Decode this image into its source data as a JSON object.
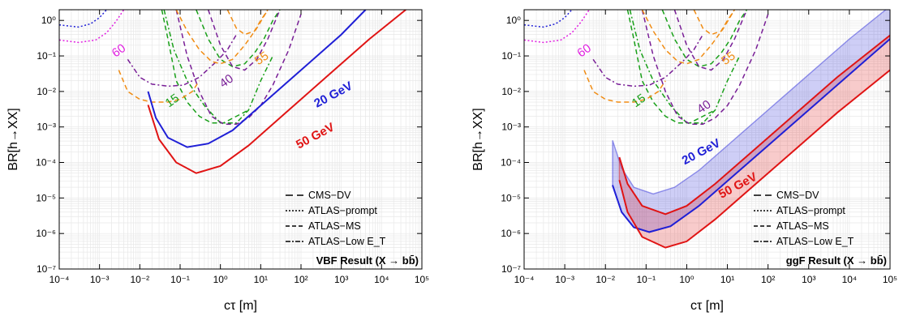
{
  "chart_data": [
    {
      "type": "line",
      "xlabel": "cτ [m]",
      "ylabel": "BR[h→XX]",
      "xscale": "log",
      "yscale": "log",
      "xlim": [
        0.0001,
        100000
      ],
      "ylim": [
        1e-07,
        2
      ],
      "x_ticks": [
        "10⁻⁴",
        "10⁻³",
        "10⁻²",
        "10⁻¹",
        "10⁰",
        "10¹",
        "10²",
        "10³",
        "10⁴",
        "10⁵"
      ],
      "y_ticks": [
        "10⁻⁷",
        "10⁻⁶",
        "10⁻⁵",
        "10⁻⁴",
        "10⁻³",
        "10⁻²",
        "10⁻¹",
        "10⁰"
      ],
      "annotation": "VBF Result (X → bb̄)",
      "legend": {
        "placement": "bottom-right",
        "entries": [
          "CMS−DV",
          "ATLAS−prompt",
          "ATLAS−MS",
          "ATLAS−Low E_T"
        ]
      },
      "mass_labels": [
        {
          "text": "20 GeV",
          "color": "#1f1fd6",
          "x": 700,
          "y": 0.0065
        },
        {
          "text": "50 GeV",
          "color": "#e01414",
          "x": 250,
          "y": 0.00045
        }
      ],
      "contour_labels": [
        {
          "text": "60",
          "color": "#e020e0",
          "x": 0.0034,
          "y": 0.115
        },
        {
          "text": "55",
          "color": "#f08c14",
          "x": 12,
          "y": 0.07
        },
        {
          "text": "40",
          "color": "#781e96",
          "x": 1.6,
          "y": 0.016
        },
        {
          "text": "15",
          "color": "#19a019",
          "x": 0.072,
          "y": 0.0045
        }
      ],
      "series": [
        {
          "name": "20 GeV",
          "color": "#1f1fd6",
          "style": "solid",
          "x": [
            0.016,
            0.025,
            0.05,
            0.15,
            0.5,
            2,
            10,
            100,
            1000,
            4000
          ],
          "y": [
            0.01,
            0.0018,
            0.0005,
            0.00027,
            0.00034,
            0.0008,
            0.004,
            0.04,
            0.4,
            2
          ]
        },
        {
          "name": "50 GeV",
          "color": "#e01414",
          "style": "solid",
          "x": [
            0.016,
            0.03,
            0.08,
            0.25,
            1,
            5,
            50,
            500,
            5000,
            40000
          ],
          "y": [
            0.0042,
            0.00045,
            0.0001,
            5e-05,
            8e-05,
            0.0003,
            0.003,
            0.03,
            0.3,
            2
          ]
        }
      ],
      "contours": [
        {
          "label": "15",
          "color": "#19a019",
          "style": "dash",
          "x": [
            0.035,
            0.05,
            0.08,
            0.15,
            0.3,
            0.6,
            1.2,
            2.5,
            5
          ],
          "y": [
            2,
            0.3,
            0.02,
            0.005,
            0.002,
            0.0013,
            0.0013,
            0.002,
            0.003
          ]
        },
        {
          "label": "15",
          "color": "#19a019",
          "style": "dashdot",
          "x": [
            0.04,
            0.07,
            0.15,
            0.4,
            1,
            2.5,
            5,
            10,
            20
          ],
          "y": [
            2,
            0.15,
            0.02,
            0.004,
            0.0013,
            0.0013,
            0.003,
            0.02,
            0.1
          ]
        },
        {
          "label": "15",
          "color": "#19a019",
          "style": "dash",
          "x": [
            0.25,
            0.5,
            1,
            2,
            4,
            7,
            12,
            20,
            30
          ],
          "y": [
            2,
            0.3,
            0.08,
            0.05,
            0.06,
            0.12,
            0.3,
            1,
            2
          ]
        },
        {
          "label": "40",
          "color": "#781e96",
          "style": "dashdot",
          "x": [
            0.005,
            0.01,
            0.02,
            0.05,
            0.12,
            0.3,
            0.8,
            1.5,
            2.5
          ],
          "y": [
            0.08,
            0.025,
            0.016,
            0.014,
            0.015,
            0.025,
            0.07,
            0.15,
            0.4
          ]
        },
        {
          "label": "40",
          "color": "#781e96",
          "style": "dash",
          "x": [
            0.08,
            0.15,
            0.3,
            0.6,
            1.2,
            2.5,
            5,
            10,
            20,
            50,
            100
          ],
          "y": [
            2,
            0.1,
            0.01,
            0.002,
            0.0012,
            0.0012,
            0.0018,
            0.004,
            0.015,
            0.15,
            1.5
          ]
        },
        {
          "label": "40",
          "color": "#781e96",
          "style": "dash",
          "x": [
            0.5,
            1,
            2,
            4,
            8,
            15,
            30
          ],
          "y": [
            2,
            0.2,
            0.05,
            0.04,
            0.08,
            0.3,
            2
          ]
        },
        {
          "label": "55",
          "color": "#f08c14",
          "style": "dash",
          "x": [
            0.003,
            0.005,
            0.01,
            0.02,
            0.05,
            0.1,
            0.2,
            0.3
          ],
          "y": [
            0.04,
            0.01,
            0.006,
            0.005,
            0.005,
            0.006,
            0.01,
            0.02
          ]
        },
        {
          "label": "55",
          "color": "#f08c14",
          "style": "dash",
          "x": [
            0.08,
            0.15,
            0.3,
            0.6,
            1,
            2,
            4,
            8,
            15
          ],
          "y": [
            2,
            0.5,
            0.15,
            0.07,
            0.06,
            0.08,
            0.2,
            0.6,
            2
          ]
        },
        {
          "label": "55",
          "color": "#f08c14",
          "style": "dash",
          "x": [
            1.5,
            2.5,
            4,
            7,
            10,
            15
          ],
          "y": [
            2,
            0.6,
            0.4,
            0.5,
            1,
            2
          ]
        },
        {
          "label": "60",
          "color": "#e020e0",
          "style": "dot",
          "x": [
            0.0001,
            0.0003,
            0.0008,
            0.0015,
            0.0025,
            0.004
          ],
          "y": [
            0.28,
            0.24,
            0.28,
            0.45,
            0.9,
            2
          ]
        },
        {
          "label": "",
          "color": "#1f1fd6",
          "style": "dot",
          "x": [
            0.0001,
            0.0003,
            0.0006,
            0.001,
            0.0015
          ],
          "y": [
            0.75,
            0.65,
            0.8,
            1.2,
            2
          ]
        }
      ]
    },
    {
      "type": "line",
      "xlabel": "cτ [m]",
      "ylabel": "BR[h→XX]",
      "xscale": "log",
      "yscale": "log",
      "xlim": [
        0.0001,
        100000
      ],
      "ylim": [
        1e-07,
        2
      ],
      "x_ticks": [
        "10⁻⁴",
        "10⁻³",
        "10⁻²",
        "10⁻¹",
        "10⁰",
        "10¹",
        "10²",
        "10³",
        "10⁴",
        "10⁵"
      ],
      "y_ticks": [
        "10⁻⁷",
        "10⁻⁶",
        "10⁻⁵",
        "10⁻⁴",
        "10⁻³",
        "10⁻²",
        "10⁻¹",
        "10⁰"
      ],
      "annotation": "ggF Result (X → bb̄)",
      "legend": {
        "placement": "bottom-right",
        "entries": [
          "CMS−DV",
          "ATLAS−prompt",
          "ATLAS−MS",
          "ATLAS−Low E_T"
        ]
      },
      "mass_labels": [
        {
          "text": "20 GeV",
          "color": "#1f1fd6",
          "x": 2.5,
          "y": 0.00016
        },
        {
          "text": "50 GeV",
          "color": "#e01414",
          "x": 20,
          "y": 1.8e-05
        }
      ],
      "contour_labels": [
        {
          "text": "60",
          "color": "#e020e0",
          "x": 0.0034,
          "y": 0.115
        },
        {
          "text": "55",
          "color": "#f08c14",
          "x": 12,
          "y": 0.07
        },
        {
          "text": "40",
          "color": "#781e96",
          "x": 3,
          "y": 0.003
        },
        {
          "text": "15",
          "color": "#19a019",
          "x": 0.075,
          "y": 0.0045
        }
      ],
      "bands": [
        {
          "name": "20 GeV",
          "color": "#1f1fd6",
          "upper": {
            "x": [
              0.015,
              0.025,
              0.05,
              0.15,
              0.5,
              2,
              10,
              100,
              1000,
              10000,
              100000
            ],
            "y": [
              0.00042,
              7e-05,
              2e-05,
              1.3e-05,
              2e-05,
              6e-05,
              0.0003,
              0.003,
              0.03,
              0.3,
              2.5
            ]
          },
          "lower": {
            "x": [
              0.015,
              0.025,
              0.05,
              0.12,
              0.4,
              2,
              10,
              100,
              1000,
              10000,
              100000
            ],
            "y": [
              2.3e-05,
              4e-06,
              1.5e-06,
              1.1e-06,
              1.6e-06,
              6e-06,
              3e-05,
              0.0003,
              0.003,
              0.03,
              0.3
            ]
          }
        },
        {
          "name": "50 GeV",
          "color": "#e01414",
          "upper": {
            "x": [
              0.022,
              0.035,
              0.08,
              0.3,
              1,
              5,
              50,
              500,
              5000,
              100000
            ],
            "y": [
              0.00014,
              2.5e-05,
              6e-06,
              3.5e-06,
              6e-06,
              2.5e-05,
              0.00025,
              0.0025,
              0.025,
              0.38
            ]
          },
          "lower": {
            "x": [
              0.022,
              0.035,
              0.08,
              0.3,
              1,
              5,
              50,
              500,
              5000,
              100000
            ],
            "y": [
              3.2e-05,
              4e-06,
              8e-07,
              4e-07,
              6e-07,
              2.5e-06,
              2.5e-05,
              0.00025,
              0.0025,
              0.04
            ]
          }
        }
      ],
      "series": [
        {
          "name": "20 GeV",
          "color": "#1f1fd6",
          "style": "solid",
          "x": [
            0.015,
            0.025,
            0.05,
            0.12,
            0.4,
            2,
            10,
            100,
            1000,
            10000,
            100000
          ],
          "y": [
            2.3e-05,
            4e-06,
            1.5e-06,
            1.1e-06,
            1.6e-06,
            6e-06,
            3e-05,
            0.0003,
            0.003,
            0.03,
            0.3
          ]
        },
        {
          "name": "50 GeV",
          "color": "#e01414",
          "style": "solid",
          "x": [
            0.022,
            0.035,
            0.08,
            0.3,
            1,
            5,
            50,
            500,
            5000,
            100000
          ],
          "y": [
            0.00014,
            2.5e-05,
            6e-06,
            3.5e-06,
            6e-06,
            2.5e-05,
            0.00025,
            0.0025,
            0.025,
            0.38
          ]
        },
        {
          "name": "50 GeV",
          "color": "#e01414",
          "style": "solid",
          "x": [
            0.022,
            0.035,
            0.08,
            0.3,
            1,
            5,
            50,
            500,
            5000,
            100000
          ],
          "y": [
            3.2e-05,
            4e-06,
            8e-07,
            4e-07,
            6e-07,
            2.5e-06,
            2.5e-05,
            0.00025,
            0.0025,
            0.04
          ]
        }
      ],
      "contours": [
        {
          "label": "15",
          "color": "#19a019",
          "style": "dash",
          "x": [
            0.035,
            0.05,
            0.08,
            0.15,
            0.3,
            0.6,
            1.2,
            2.5,
            5
          ],
          "y": [
            2,
            0.3,
            0.02,
            0.005,
            0.002,
            0.0013,
            0.0013,
            0.002,
            0.003
          ]
        },
        {
          "label": "15",
          "color": "#19a019",
          "style": "dashdot",
          "x": [
            0.04,
            0.07,
            0.15,
            0.4,
            1,
            2.5,
            5,
            10,
            20
          ],
          "y": [
            2,
            0.15,
            0.02,
            0.004,
            0.0013,
            0.0013,
            0.003,
            0.02,
            0.1
          ]
        },
        {
          "label": "15",
          "color": "#19a019",
          "style": "dash",
          "x": [
            0.25,
            0.5,
            1,
            2,
            4,
            7,
            12,
            20,
            30
          ],
          "y": [
            2,
            0.3,
            0.08,
            0.05,
            0.06,
            0.12,
            0.3,
            1,
            2
          ]
        },
        {
          "label": "40",
          "color": "#781e96",
          "style": "dashdot",
          "x": [
            0.005,
            0.01,
            0.02,
            0.05,
            0.12,
            0.3,
            0.8,
            1.5,
            2.5
          ],
          "y": [
            0.08,
            0.025,
            0.016,
            0.014,
            0.015,
            0.025,
            0.07,
            0.15,
            0.4
          ]
        },
        {
          "label": "40",
          "color": "#781e96",
          "style": "dash",
          "x": [
            0.08,
            0.15,
            0.3,
            0.6,
            1.2,
            2.5,
            5,
            10,
            20,
            50,
            100
          ],
          "y": [
            2,
            0.1,
            0.01,
            0.002,
            0.0012,
            0.0012,
            0.0018,
            0.004,
            0.015,
            0.15,
            1.5
          ]
        },
        {
          "label": "40",
          "color": "#781e96",
          "style": "dash",
          "x": [
            0.5,
            1,
            2,
            4,
            8,
            15,
            30
          ],
          "y": [
            2,
            0.2,
            0.05,
            0.04,
            0.08,
            0.3,
            2
          ]
        },
        {
          "label": "55",
          "color": "#f08c14",
          "style": "dash",
          "x": [
            0.003,
            0.005,
            0.01,
            0.02,
            0.05,
            0.1,
            0.2,
            0.3
          ],
          "y": [
            0.04,
            0.01,
            0.006,
            0.005,
            0.005,
            0.006,
            0.01,
            0.02
          ]
        },
        {
          "label": "55",
          "color": "#f08c14",
          "style": "dash",
          "x": [
            0.08,
            0.15,
            0.3,
            0.6,
            1,
            2,
            4,
            8,
            15
          ],
          "y": [
            2,
            0.5,
            0.15,
            0.07,
            0.06,
            0.08,
            0.2,
            0.6,
            2
          ]
        },
        {
          "label": "55",
          "color": "#f08c14",
          "style": "dash",
          "x": [
            1.5,
            2.5,
            4,
            7,
            10,
            15
          ],
          "y": [
            2,
            0.6,
            0.4,
            0.5,
            1,
            2
          ]
        },
        {
          "label": "60",
          "color": "#e020e0",
          "style": "dot",
          "x": [
            0.0001,
            0.0003,
            0.0008,
            0.0015,
            0.0025,
            0.004
          ],
          "y": [
            0.28,
            0.24,
            0.28,
            0.45,
            0.9,
            2
          ]
        },
        {
          "label": "",
          "color": "#1f1fd6",
          "style": "dot",
          "x": [
            0.0001,
            0.0003,
            0.0006,
            0.001,
            0.0015
          ],
          "y": [
            0.75,
            0.65,
            0.8,
            1.2,
            2
          ]
        }
      ]
    }
  ]
}
